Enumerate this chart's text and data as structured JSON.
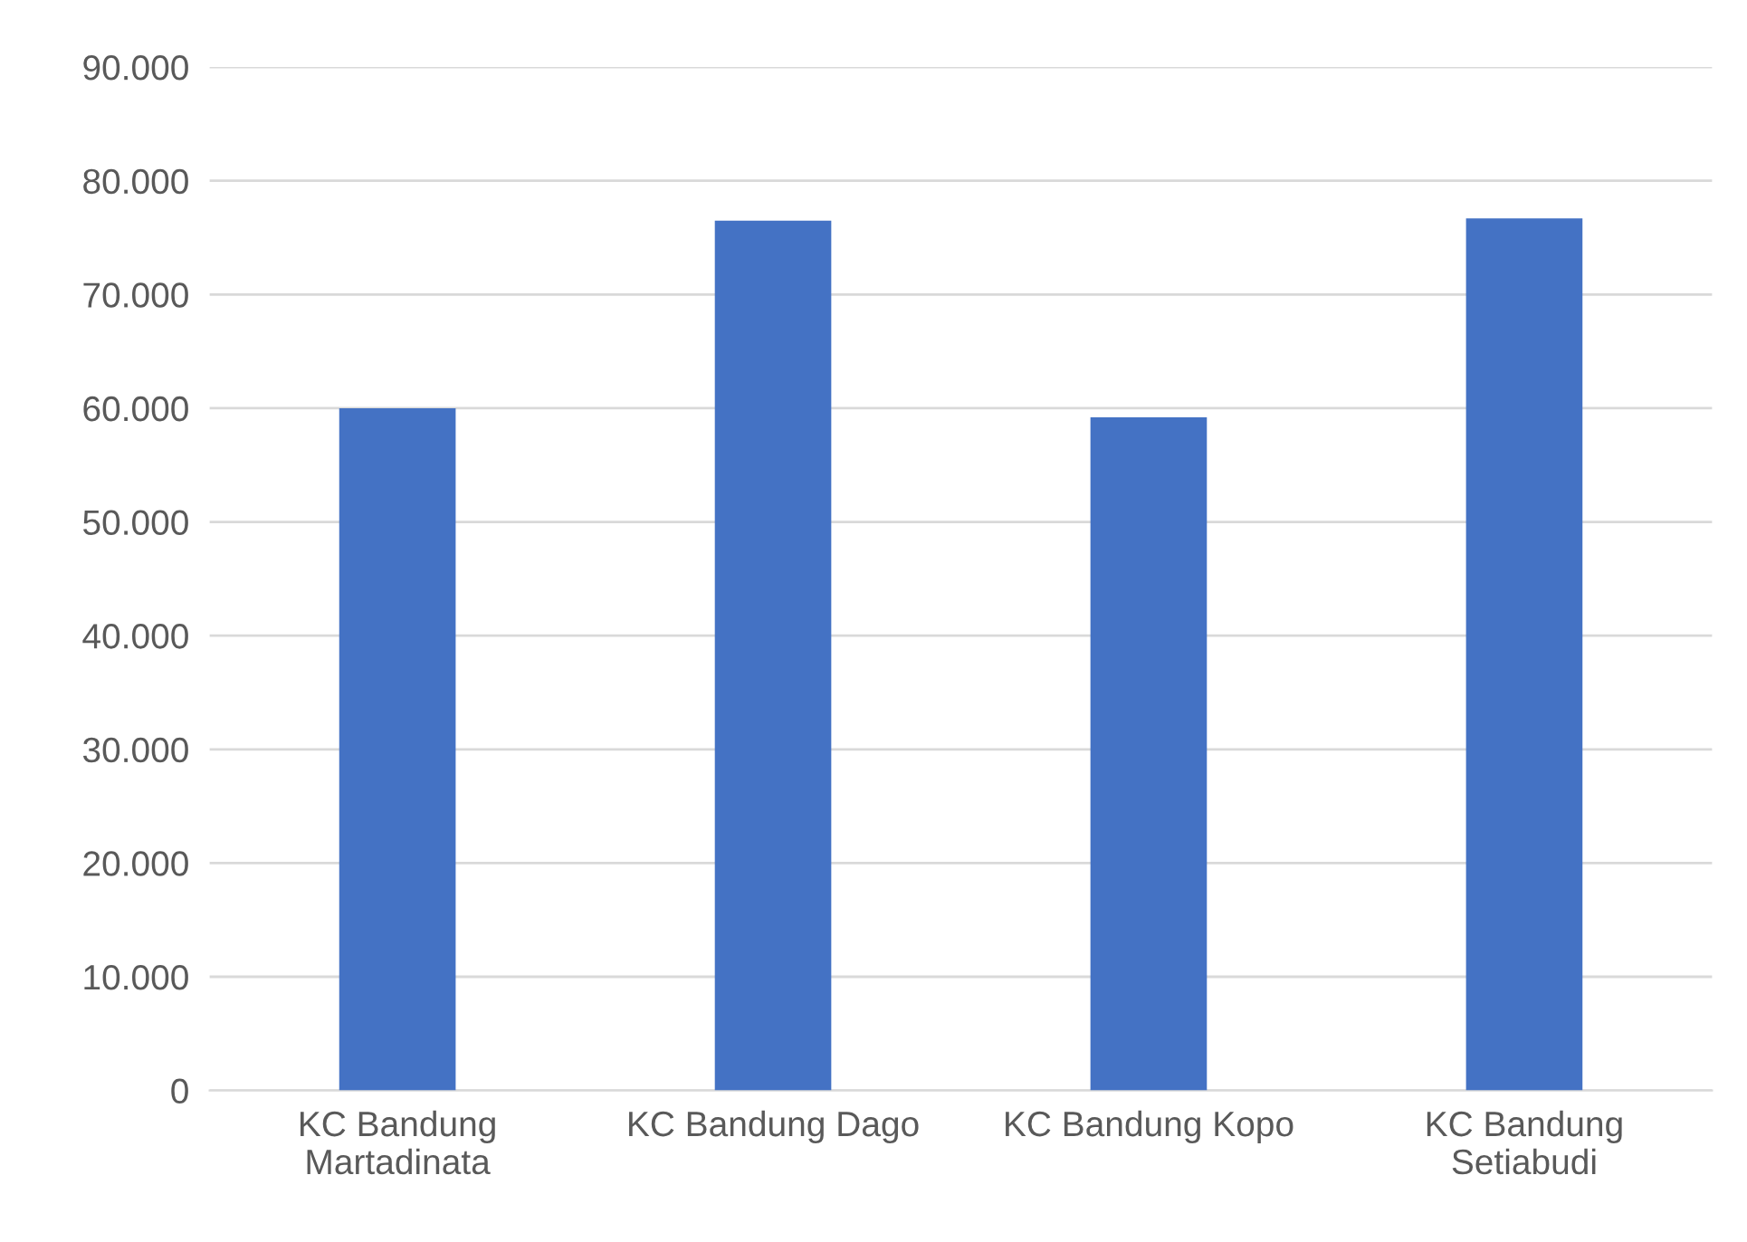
{
  "chart_data": {
    "type": "bar",
    "categories": [
      "KC Bandung\nMartadinata",
      "KC Bandung Dago",
      "KC Bandung Kopo",
      "KC Bandung\nSetiabudi"
    ],
    "values": [
      60000,
      76500,
      59200,
      76700
    ],
    "color": "#4472c4",
    "ylim": [
      0,
      90000
    ],
    "yticks": [
      {
        "value": 0,
        "label": "0"
      },
      {
        "value": 10000,
        "label": "10.000"
      },
      {
        "value": 20000,
        "label": "20.000"
      },
      {
        "value": 30000,
        "label": "30.000"
      },
      {
        "value": 40000,
        "label": "40.000"
      },
      {
        "value": 50000,
        "label": "50.000"
      },
      {
        "value": 60000,
        "label": "60.000"
      },
      {
        "value": 70000,
        "label": "70.000"
      },
      {
        "value": 80000,
        "label": "80.000"
      },
      {
        "value": 90000,
        "label": "90.000"
      }
    ],
    "grid": "y"
  }
}
